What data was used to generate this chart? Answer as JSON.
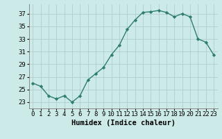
{
  "x": [
    0,
    1,
    2,
    3,
    4,
    5,
    6,
    7,
    8,
    9,
    10,
    11,
    12,
    13,
    14,
    15,
    16,
    17,
    18,
    19,
    20,
    21,
    22,
    23
  ],
  "y": [
    26.0,
    25.5,
    24.0,
    23.5,
    24.0,
    23.0,
    24.0,
    26.5,
    27.5,
    28.5,
    30.5,
    32.0,
    34.5,
    36.0,
    37.2,
    37.3,
    37.5,
    37.2,
    36.5,
    37.0,
    36.5,
    33.0,
    32.5,
    30.5
  ],
  "line_color": "#2e7d6e",
  "marker": "D",
  "markersize": 2.2,
  "linewidth": 1.0,
  "bg_color": "#cceae8",
  "grid_color": "#b0cece",
  "xlabel": "Humidex (Indice chaleur)",
  "ylim": [
    22,
    38.5
  ],
  "yticks": [
    23,
    25,
    27,
    29,
    31,
    33,
    35,
    37
  ],
  "xticks": [
    0,
    1,
    2,
    3,
    4,
    5,
    6,
    7,
    8,
    9,
    10,
    11,
    12,
    13,
    14,
    15,
    16,
    17,
    18,
    19,
    20,
    21,
    22,
    23
  ],
  "xlabel_fontsize": 7.5,
  "tick_fontsize": 6.5
}
